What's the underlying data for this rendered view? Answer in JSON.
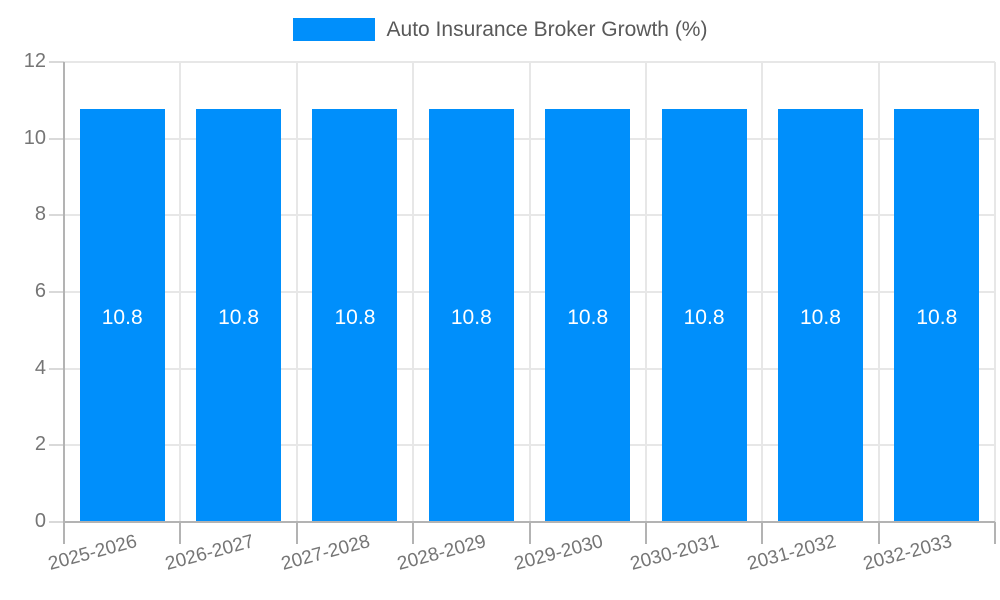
{
  "legend": {
    "label": "Auto Insurance Broker Growth (%)"
  },
  "chart_data": {
    "type": "bar",
    "title": "",
    "categories": [
      "2025-2026",
      "2026-2027",
      "2027-2028",
      "2028-2029",
      "2029-2030",
      "2030-2031",
      "2031-2032",
      "2032-2033"
    ],
    "series": [
      {
        "name": "Auto Insurance Broker Growth (%)",
        "values": [
          10.8,
          10.8,
          10.8,
          10.8,
          10.8,
          10.8,
          10.8,
          10.8
        ]
      }
    ],
    "bar_value_labels": [
      "10.8",
      "10.8",
      "10.8",
      "10.8",
      "10.8",
      "10.8",
      "10.8",
      "10.8"
    ],
    "xlabel": "",
    "ylabel": "",
    "ylim": [
      0,
      12
    ],
    "yticks": [
      0,
      2,
      4,
      6,
      8,
      10,
      12
    ],
    "ytick_labels": [
      "0",
      "2",
      "4",
      "6",
      "8",
      "10",
      "12"
    ],
    "grid": true,
    "legend_position": "top"
  },
  "colors": {
    "bar": "#008FFB",
    "bar_label": "#FFFFFF",
    "grid": "#E7E7E7",
    "axis": "#B3B3B3",
    "tick": "#D9D9D9",
    "axis_text": "#757575",
    "legend_text": "#595959",
    "background": "#FFFFFF"
  }
}
